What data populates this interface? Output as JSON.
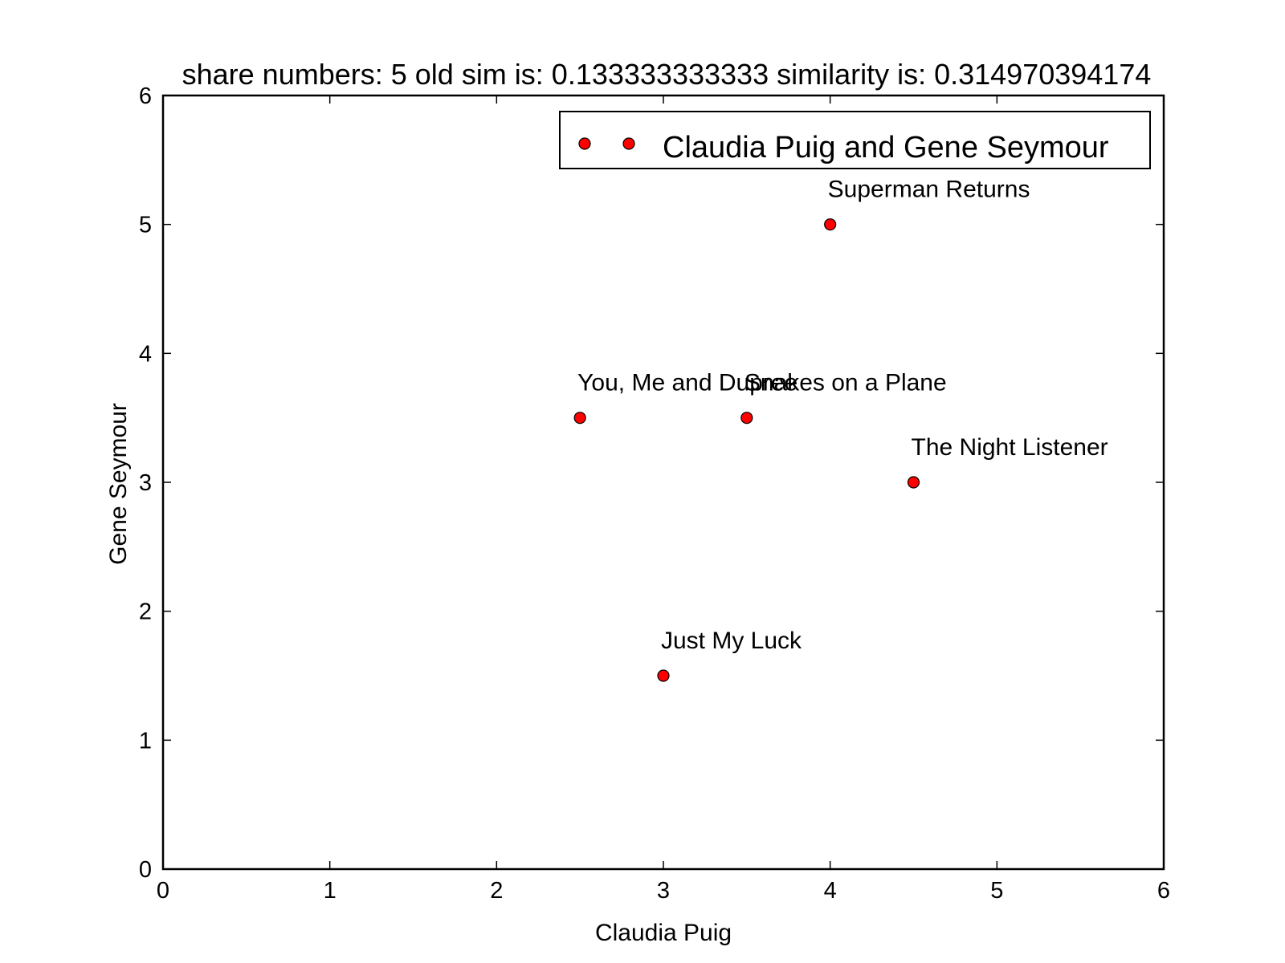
{
  "chart_data": {
    "type": "scatter",
    "title": "share numbers: 5 old sim is: 0.133333333333 similarity is: 0.314970394174",
    "xlabel": "Claudia Puig",
    "ylabel": "Gene Seymour",
    "xlim": [
      0,
      6
    ],
    "ylim": [
      0,
      6
    ],
    "xticks": [
      "0",
      "1",
      "2",
      "3",
      "4",
      "5",
      "6"
    ],
    "yticks": [
      "0",
      "1",
      "2",
      "3",
      "4",
      "5",
      "6"
    ],
    "grid": false,
    "legend_position": "top-right",
    "series": [
      {
        "name": "Claudia Puig and Gene Seymour",
        "color": "#ff0000",
        "points": [
          {
            "x": 2.5,
            "y": 3.5,
            "label": "You, Me and Dupree"
          },
          {
            "x": 3.5,
            "y": 3.5,
            "label": "Snakes on a Plane"
          },
          {
            "x": 4.0,
            "y": 5.0,
            "label": "Superman Returns"
          },
          {
            "x": 4.5,
            "y": 3.0,
            "label": "The Night Listener"
          },
          {
            "x": 3.0,
            "y": 1.5,
            "label": "Just My Luck"
          }
        ]
      }
    ]
  }
}
